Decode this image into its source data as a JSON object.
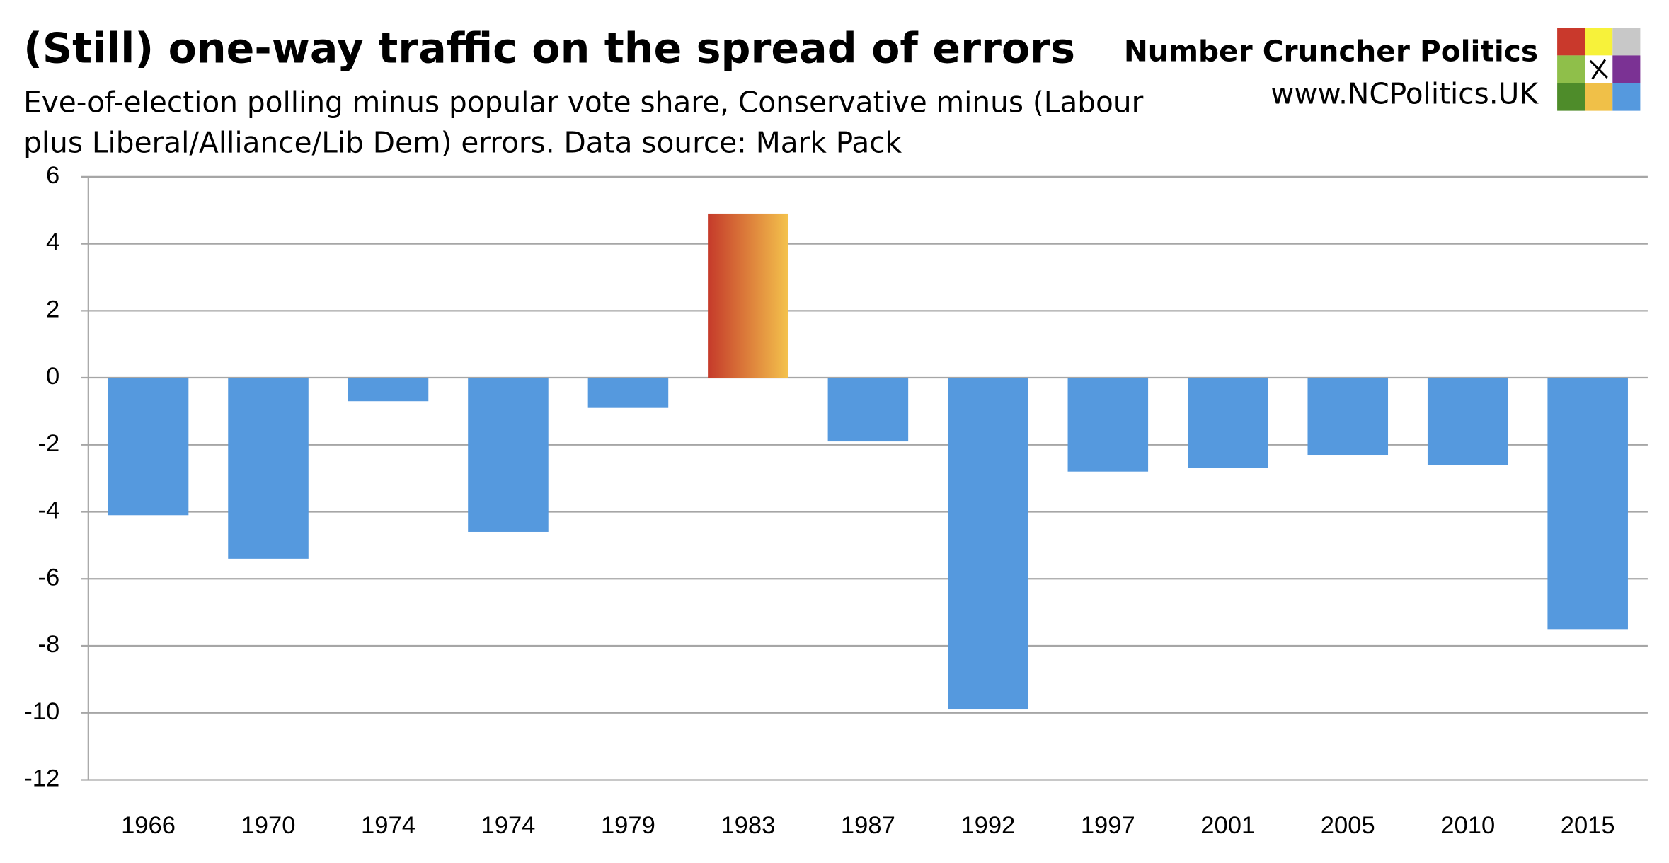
{
  "chart_data": {
    "type": "bar",
    "title": "(Still) one-way traffic on the spread of errors",
    "subtitle": [
      "Eve-of-election polling minus popular vote share, Conservative minus (Labour",
      "plus Liberal/Alliance/Lib Dem) errors. Data source: Mark Pack"
    ],
    "brand": [
      "Number Cruncher Politics",
      "www.NCPolitics.UK"
    ],
    "categories": [
      "1966",
      "1970",
      "1974",
      "1974",
      "1979",
      "1983",
      "1987",
      "1992",
      "1997",
      "2001",
      "2005",
      "2010",
      "2015"
    ],
    "values": [
      -4.1,
      -5.4,
      -0.7,
      -4.6,
      -0.9,
      4.9,
      -1.9,
      -9.9,
      -2.8,
      -2.7,
      -2.3,
      -2.6,
      -7.5
    ],
    "colors": [
      "#5599de",
      "#5599de",
      "#5599de",
      "#5599de",
      "#5599de",
      [
        "#c53a2a",
        "#f4c24c"
      ],
      "#5599de",
      "#5599de",
      "#5599de",
      "#5599de",
      "#5599de",
      "#5599de",
      "#5599de"
    ],
    "ylim": [
      -12,
      6
    ],
    "yticks": [
      -12,
      -10,
      -8,
      -6,
      -4,
      -2,
      0,
      2,
      4,
      6
    ],
    "grid": true
  }
}
